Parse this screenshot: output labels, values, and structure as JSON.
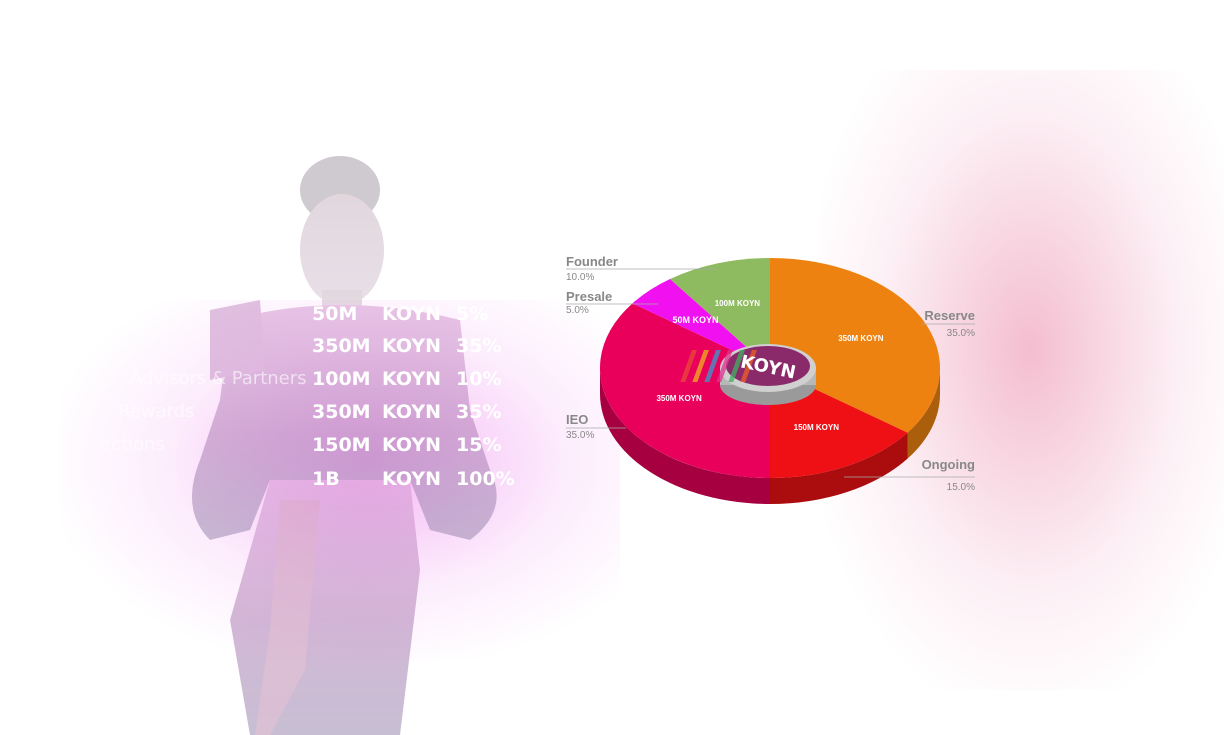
{
  "distribution_table": {
    "title": "",
    "rows": [
      {
        "name": "",
        "amount": "50M",
        "unit": "KOYN",
        "percent": "5%"
      },
      {
        "name": "",
        "amount": "350M",
        "unit": "KOYN",
        "percent": "35%"
      },
      {
        "name": "Advisors & Partners",
        "amount": "100M",
        "unit": "KOYN",
        "percent": "10%"
      },
      {
        "name": "Rewards",
        "amount": "350M",
        "unit": "KOYN",
        "percent": "35%"
      },
      {
        "name": "ections",
        "amount": "150M",
        "unit": "KOYN",
        "percent": "15%"
      },
      {
        "name": "",
        "amount": "1B",
        "unit": "KOYN",
        "percent": "100%"
      }
    ]
  },
  "center_logo": {
    "text": "KOYN"
  },
  "chart_data": {
    "type": "pie",
    "title": "",
    "slices": [
      {
        "label": "Reserve",
        "percent_label": "35.0%",
        "value": 350,
        "value_label": "350M KOYN",
        "color": "#EE8210"
      },
      {
        "label": "Ongoing",
        "percent_label": "15.0%",
        "value": 150,
        "value_label": "150M KOYN",
        "color": "#EE1014"
      },
      {
        "label": "IEO",
        "percent_label": "35.0%",
        "value": 350,
        "value_label": "350M KOYN",
        "color": "#E8005A"
      },
      {
        "label": "Presale",
        "percent_label": "5.0%",
        "value": 50,
        "value_label": "50M KOYN",
        "color": "#F010F0"
      },
      {
        "label": "Founder",
        "percent_label": "10.0%",
        "value": 100,
        "value_label": "100M KOYN",
        "color": "#8EBB60"
      }
    ]
  },
  "colors": {
    "label_text": "#888888",
    "slice_label_text": "#ffffff"
  }
}
